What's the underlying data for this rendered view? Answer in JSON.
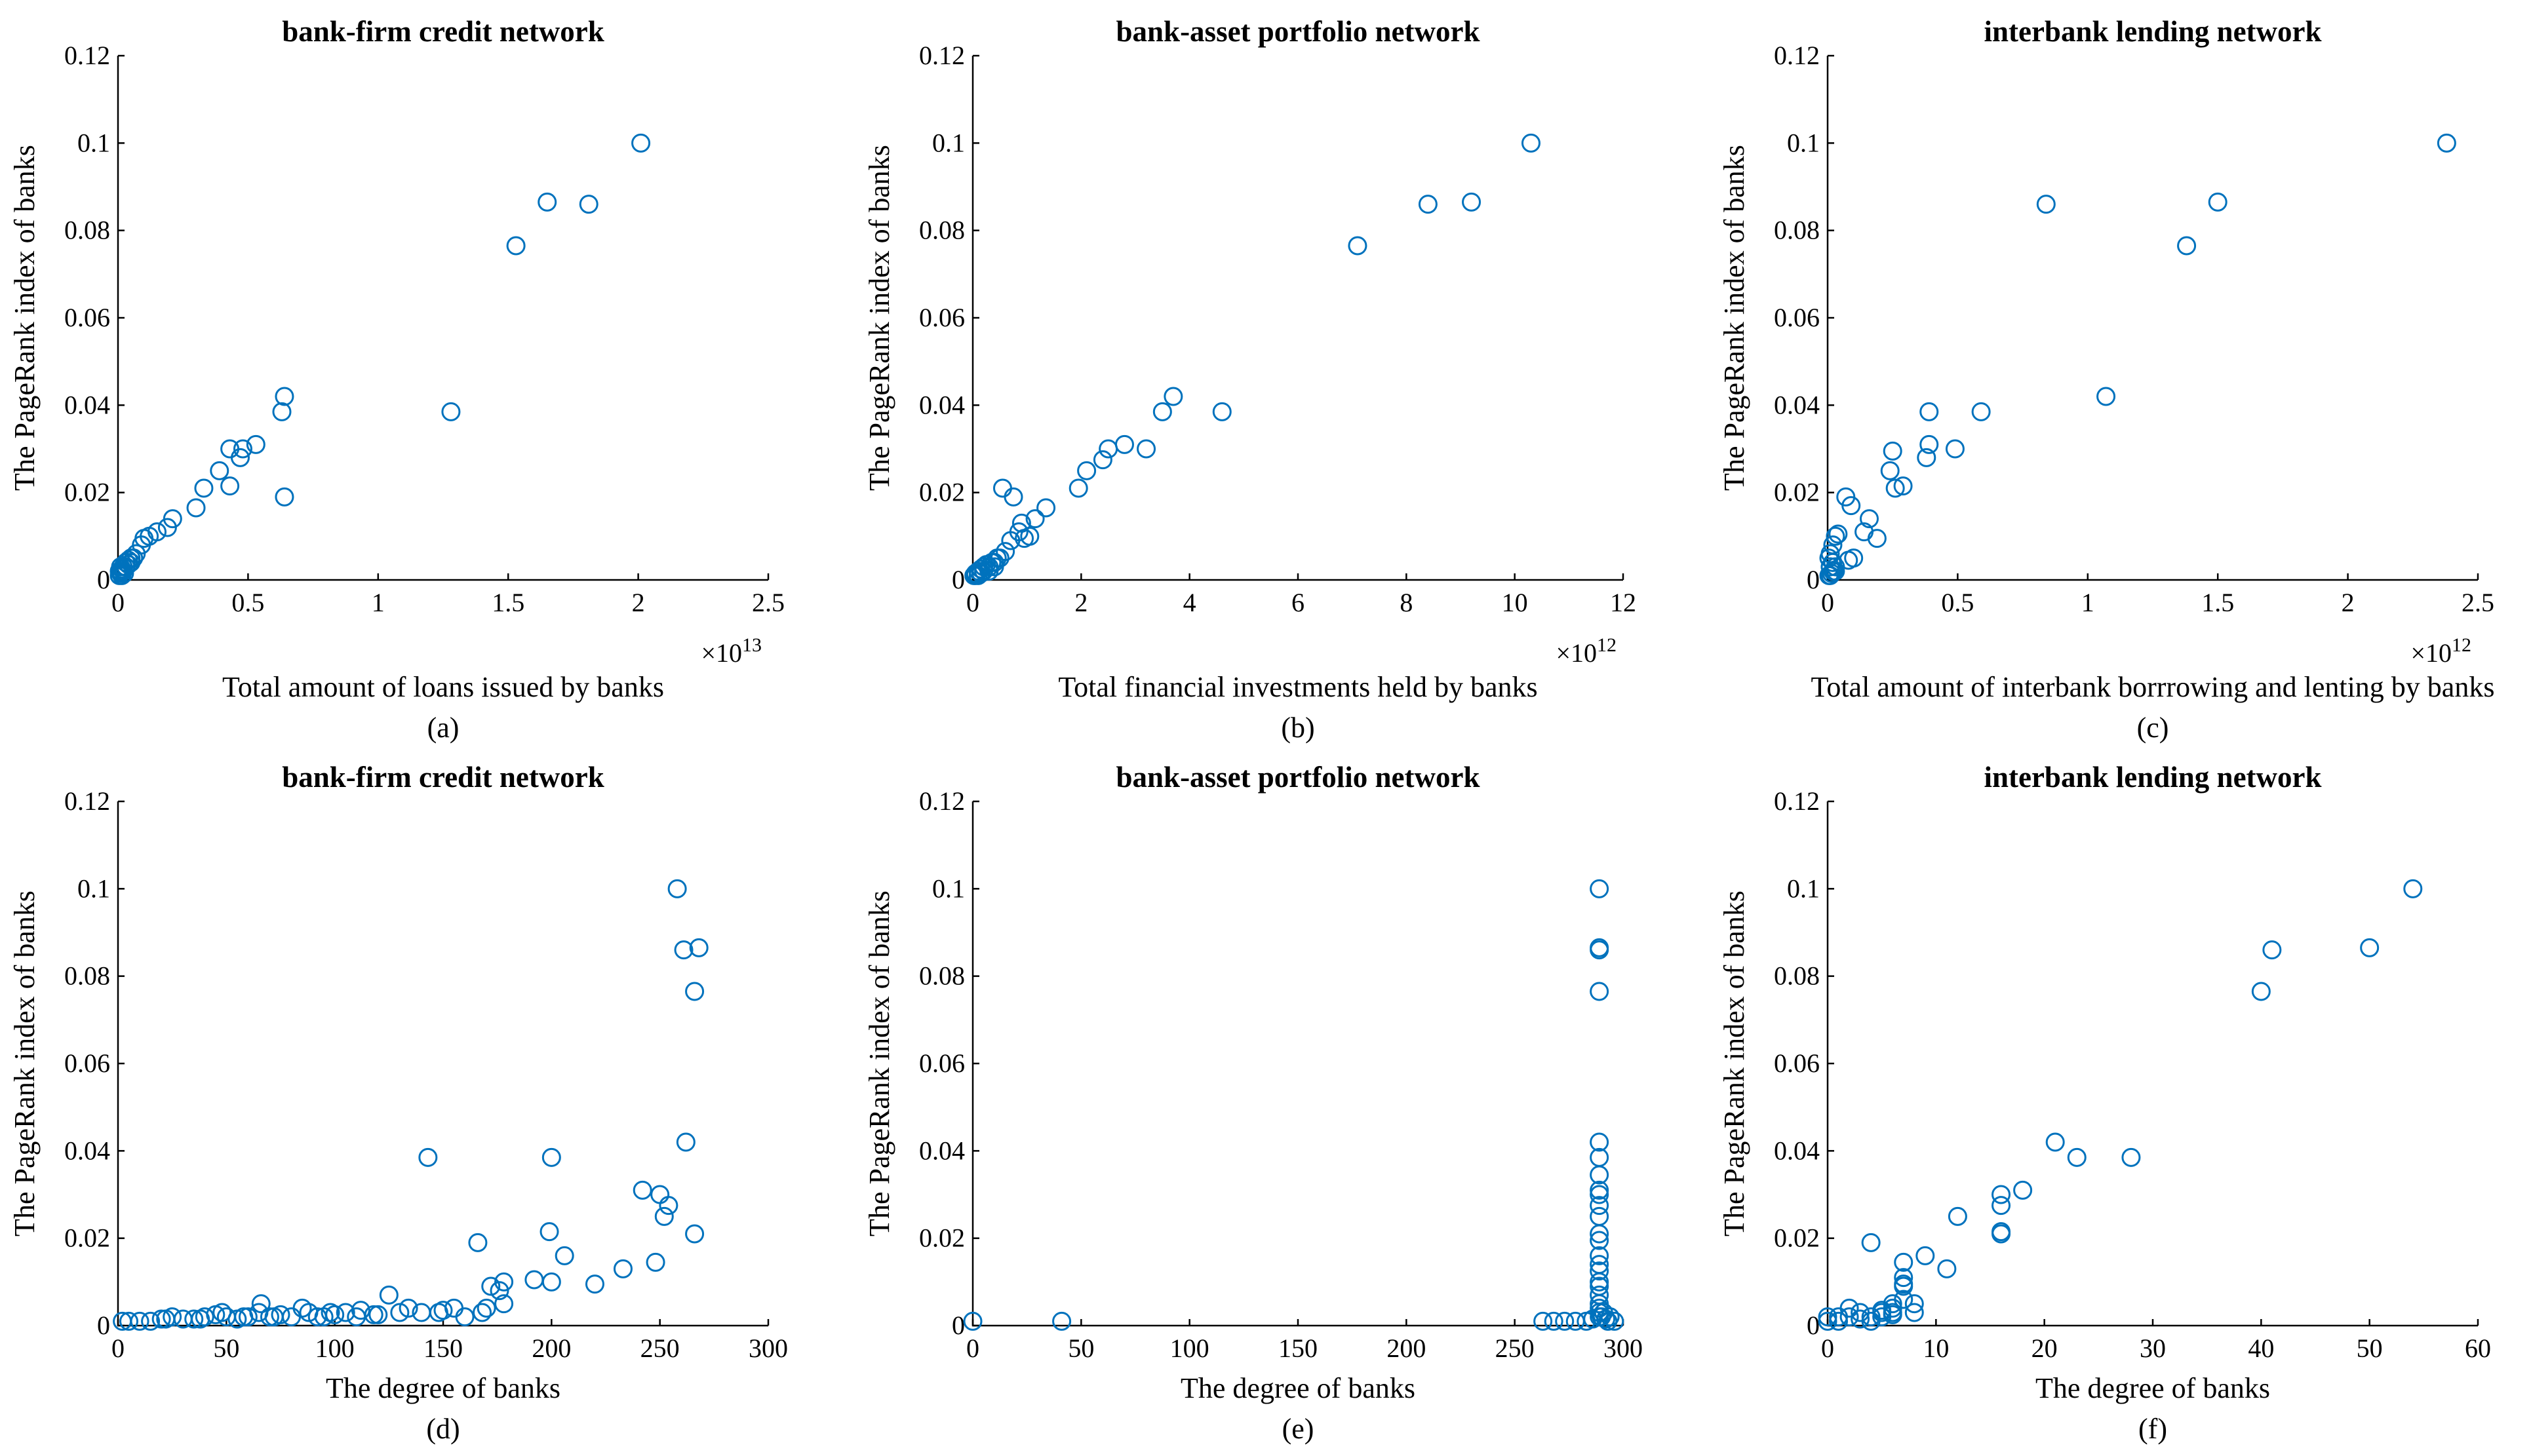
{
  "chart_data": [
    {
      "type": "scatter",
      "panel": "(a)",
      "title": "bank-firm credit network",
      "xlabel": "Total amount of loans issued by banks",
      "ylabel": "The PageRank index of banks",
      "xlim": [
        0,
        2.5
      ],
      "ylim": [
        0,
        0.12
      ],
      "xticks": [
        0,
        0.5,
        1,
        1.5,
        2,
        2.5
      ],
      "xtick_labels": [
        "0",
        "0.5",
        "1",
        "1.5",
        "2",
        "2.5"
      ],
      "yticks": [
        0,
        0.02,
        0.04,
        0.06,
        0.08,
        0.1,
        0.12
      ],
      "ytick_labels": [
        "0",
        "0.02",
        "0.04",
        "0.06",
        "0.08",
        "0.1",
        "0.12"
      ],
      "x_exponent": {
        "base": "×10",
        "power": "13"
      },
      "x": [
        2.01,
        1.81,
        1.65,
        1.53,
        1.28,
        0.64,
        0.63,
        0.64,
        0.53,
        0.48,
        0.47,
        0.43,
        0.43,
        0.39,
        0.33,
        0.3,
        0.21,
        0.19,
        0.15,
        0.12,
        0.1,
        0.09,
        0.07,
        0.06,
        0.05,
        0.05,
        0.04,
        0.03,
        0.02,
        0.015,
        0.01,
        0.01,
        0.005,
        0.02,
        0.03,
        0.01,
        0.025,
        0.005,
        0.04,
        0.015
      ],
      "y": [
        0.1,
        0.086,
        0.0865,
        0.0765,
        0.0385,
        0.042,
        0.0385,
        0.019,
        0.031,
        0.03,
        0.028,
        0.03,
        0.0215,
        0.025,
        0.021,
        0.0165,
        0.014,
        0.012,
        0.011,
        0.01,
        0.0095,
        0.008,
        0.006,
        0.005,
        0.005,
        0.004,
        0.0035,
        0.003,
        0.003,
        0.0025,
        0.002,
        0.0015,
        0.001,
        0.002,
        0.004,
        0.003,
        0.0015,
        0.002,
        0.0045,
        0.001
      ]
    },
    {
      "type": "scatter",
      "panel": "(b)",
      "title": "bank-asset portfolio network",
      "xlabel": "Total financial investments held by banks",
      "ylabel": "The PageRank index of banks",
      "xlim": [
        0,
        12
      ],
      "ylim": [
        0,
        0.12
      ],
      "xticks": [
        0,
        2,
        4,
        6,
        8,
        10,
        12
      ],
      "xtick_labels": [
        "0",
        "2",
        "4",
        "6",
        "8",
        "10",
        "12"
      ],
      "yticks": [
        0,
        0.02,
        0.04,
        0.06,
        0.08,
        0.1,
        0.12
      ],
      "ytick_labels": [
        "0",
        "0.02",
        "0.04",
        "0.06",
        "0.08",
        "0.1",
        "0.12"
      ],
      "x_exponent": {
        "base": "×10",
        "power": "12"
      },
      "x": [
        10.3,
        9.2,
        8.4,
        7.1,
        4.6,
        3.7,
        3.5,
        3.2,
        2.8,
        2.5,
        2.4,
        2.1,
        1.95,
        1.35,
        1.15,
        1.05,
        0.95,
        0.9,
        0.85,
        0.75,
        0.7,
        0.6,
        0.55,
        0.5,
        0.45,
        0.4,
        0.35,
        0.3,
        0.25,
        0.2,
        0.15,
        0.1,
        0.05,
        0.02,
        0.3,
        0.2,
        0.1,
        0.15,
        0.4,
        0.05
      ],
      "y": [
        0.1,
        0.0865,
        0.086,
        0.0765,
        0.0385,
        0.042,
        0.0385,
        0.03,
        0.031,
        0.03,
        0.0275,
        0.025,
        0.021,
        0.0165,
        0.014,
        0.01,
        0.0095,
        0.013,
        0.011,
        0.019,
        0.009,
        0.0065,
        0.021,
        0.005,
        0.005,
        0.004,
        0.004,
        0.003,
        0.0035,
        0.003,
        0.0025,
        0.002,
        0.0015,
        0.001,
        0.002,
        0.002,
        0.001,
        0.0015,
        0.003,
        0.001
      ]
    },
    {
      "type": "scatter",
      "panel": "(c)",
      "title": "interbank lending network",
      "xlabel": "Total amount of interbank borrrowing and lenting by banks",
      "ylabel": "The PageRank index of banks",
      "xlim": [
        0,
        2.5
      ],
      "ylim": [
        0,
        0.12
      ],
      "xticks": [
        0,
        0.5,
        1,
        1.5,
        2,
        2.5
      ],
      "xtick_labels": [
        "0",
        "0.5",
        "1",
        "1.5",
        "2",
        "2.5"
      ],
      "yticks": [
        0,
        0.02,
        0.04,
        0.06,
        0.08,
        0.1,
        0.12
      ],
      "ytick_labels": [
        "0",
        "0.02",
        "0.04",
        "0.06",
        "0.08",
        "0.1",
        "0.12"
      ],
      "x_exponent": {
        "base": "×10",
        "power": "12"
      },
      "x": [
        2.38,
        1.5,
        1.38,
        0.84,
        1.07,
        0.59,
        0.49,
        0.39,
        0.39,
        0.38,
        0.25,
        0.24,
        0.26,
        0.29,
        0.14,
        0.16,
        0.19,
        0.09,
        0.07,
        0.04,
        0.03,
        0.02,
        0.01,
        0.005,
        0.02,
        0.01,
        0.03,
        0.02,
        0.015,
        0.025,
        0.005,
        0.01,
        0.03,
        0.1,
        0.08
      ],
      "y": [
        0.1,
        0.0865,
        0.0765,
        0.086,
        0.042,
        0.0385,
        0.03,
        0.0385,
        0.031,
        0.028,
        0.0295,
        0.025,
        0.021,
        0.0215,
        0.011,
        0.014,
        0.0095,
        0.017,
        0.019,
        0.0105,
        0.01,
        0.008,
        0.006,
        0.005,
        0.004,
        0.003,
        0.003,
        0.002,
        0.0015,
        0.002,
        0.001,
        0.001,
        0.002,
        0.005,
        0.0045
      ]
    },
    {
      "type": "scatter",
      "panel": "(d)",
      "title": "bank-firm credit network",
      "xlabel": "The degree of banks",
      "ylabel": "The PageRank index of banks",
      "xlim": [
        0,
        300
      ],
      "ylim": [
        0,
        0.12
      ],
      "xticks": [
        0,
        50,
        100,
        150,
        200,
        250,
        300
      ],
      "xtick_labels": [
        "0",
        "50",
        "100",
        "150",
        "200",
        "250",
        "300"
      ],
      "yticks": [
        0,
        0.02,
        0.04,
        0.06,
        0.08,
        0.1,
        0.12
      ],
      "ytick_labels": [
        "0",
        "0.02",
        "0.04",
        "0.06",
        "0.08",
        "0.1",
        "0.12"
      ],
      "x": [
        258,
        268,
        261,
        266,
        143,
        200,
        262,
        242,
        250,
        254,
        252,
        266,
        166,
        199,
        206,
        248,
        233,
        178,
        172,
        176,
        170,
        192,
        200,
        220,
        178,
        168,
        125,
        155,
        140,
        130,
        150,
        118,
        110,
        105,
        100,
        95,
        88,
        80,
        75,
        70,
        65,
        60,
        55,
        50,
        45,
        40,
        35,
        30,
        25,
        20,
        15,
        10,
        5,
        2,
        48,
        66,
        85,
        98,
        112,
        134,
        148,
        160,
        22,
        38,
        58,
        72,
        92,
        120
      ],
      "y": [
        0.1,
        0.0865,
        0.086,
        0.0765,
        0.0385,
        0.0385,
        0.042,
        0.031,
        0.03,
        0.0275,
        0.025,
        0.021,
        0.019,
        0.0215,
        0.016,
        0.0145,
        0.013,
        0.01,
        0.009,
        0.008,
        0.004,
        0.0105,
        0.01,
        0.0095,
        0.005,
        0.003,
        0.007,
        0.004,
        0.003,
        0.003,
        0.0035,
        0.0025,
        0.002,
        0.003,
        0.0025,
        0.002,
        0.003,
        0.002,
        0.0025,
        0.002,
        0.003,
        0.002,
        0.0015,
        0.002,
        0.0025,
        0.002,
        0.0015,
        0.0015,
        0.002,
        0.0015,
        0.001,
        0.001,
        0.001,
        0.001,
        0.003,
        0.005,
        0.004,
        0.003,
        0.0035,
        0.004,
        0.003,
        0.002,
        0.0015,
        0.0015,
        0.002,
        0.002,
        0.002,
        0.0025
      ]
    },
    {
      "type": "scatter",
      "panel": "(e)",
      "title": "bank-asset portfolio network",
      "xlabel": "The degree of banks",
      "ylabel": "The PageRank index of banks",
      "xlim": [
        0,
        300
      ],
      "ylim": [
        0,
        0.12
      ],
      "xticks": [
        0,
        50,
        100,
        150,
        200,
        250,
        300
      ],
      "xtick_labels": [
        "0",
        "50",
        "100",
        "150",
        "200",
        "250",
        "300"
      ],
      "yticks": [
        0,
        0.02,
        0.04,
        0.06,
        0.08,
        0.1,
        0.12
      ],
      "ytick_labels": [
        "0",
        "0.02",
        "0.04",
        "0.06",
        "0.08",
        "0.1",
        "0.12"
      ],
      "x": [
        0,
        41,
        263,
        268,
        273,
        278,
        283,
        286,
        289,
        289,
        289,
        289,
        289,
        289,
        289,
        289,
        289,
        289,
        289,
        289,
        289,
        289,
        289,
        289,
        289,
        289,
        289,
        289,
        289,
        289,
        289,
        290,
        292,
        294,
        296,
        291,
        293
      ],
      "y": [
        0.001,
        0.001,
        0.001,
        0.001,
        0.001,
        0.001,
        0.001,
        0.0015,
        0.1,
        0.0865,
        0.086,
        0.0765,
        0.042,
        0.0385,
        0.0345,
        0.031,
        0.03,
        0.0275,
        0.025,
        0.021,
        0.0195,
        0.016,
        0.014,
        0.0125,
        0.01,
        0.009,
        0.007,
        0.005,
        0.004,
        0.003,
        0.002,
        0.002,
        0.0015,
        0.002,
        0.001,
        0.003,
        0.001
      ]
    },
    {
      "type": "scatter",
      "panel": "(f)",
      "title": "interbank lending network",
      "xlabel": "The degree of banks",
      "ylabel": "The PageRank index of banks",
      "xlim": [
        0,
        60
      ],
      "ylim": [
        0,
        0.12
      ],
      "xticks": [
        0,
        10,
        20,
        30,
        40,
        50,
        60
      ],
      "xtick_labels": [
        "0",
        "10",
        "20",
        "30",
        "40",
        "50",
        "60"
      ],
      "yticks": [
        0,
        0.02,
        0.04,
        0.06,
        0.08,
        0.1,
        0.12
      ],
      "ytick_labels": [
        "0",
        "0.02",
        "0.04",
        "0.06",
        "0.08",
        "0.1",
        "0.12"
      ],
      "x": [
        54,
        50,
        41,
        40,
        21,
        23,
        28,
        18,
        16,
        16,
        16,
        16,
        12,
        11,
        9,
        7,
        7,
        7,
        7,
        7,
        8,
        8,
        6,
        6,
        6,
        5,
        5,
        5,
        4,
        4,
        3,
        3,
        2,
        2,
        1,
        1,
        0,
        0,
        4,
        6
      ],
      "y": [
        0.1,
        0.0865,
        0.086,
        0.0765,
        0.042,
        0.0385,
        0.0385,
        0.031,
        0.03,
        0.0275,
        0.0215,
        0.021,
        0.025,
        0.013,
        0.016,
        0.0145,
        0.011,
        0.0095,
        0.009,
        0.006,
        0.005,
        0.003,
        0.005,
        0.004,
        0.003,
        0.003,
        0.002,
        0.0035,
        0.019,
        0.002,
        0.003,
        0.0015,
        0.002,
        0.004,
        0.002,
        0.001,
        0.001,
        0.002,
        0.001,
        0.0025
      ]
    }
  ]
}
